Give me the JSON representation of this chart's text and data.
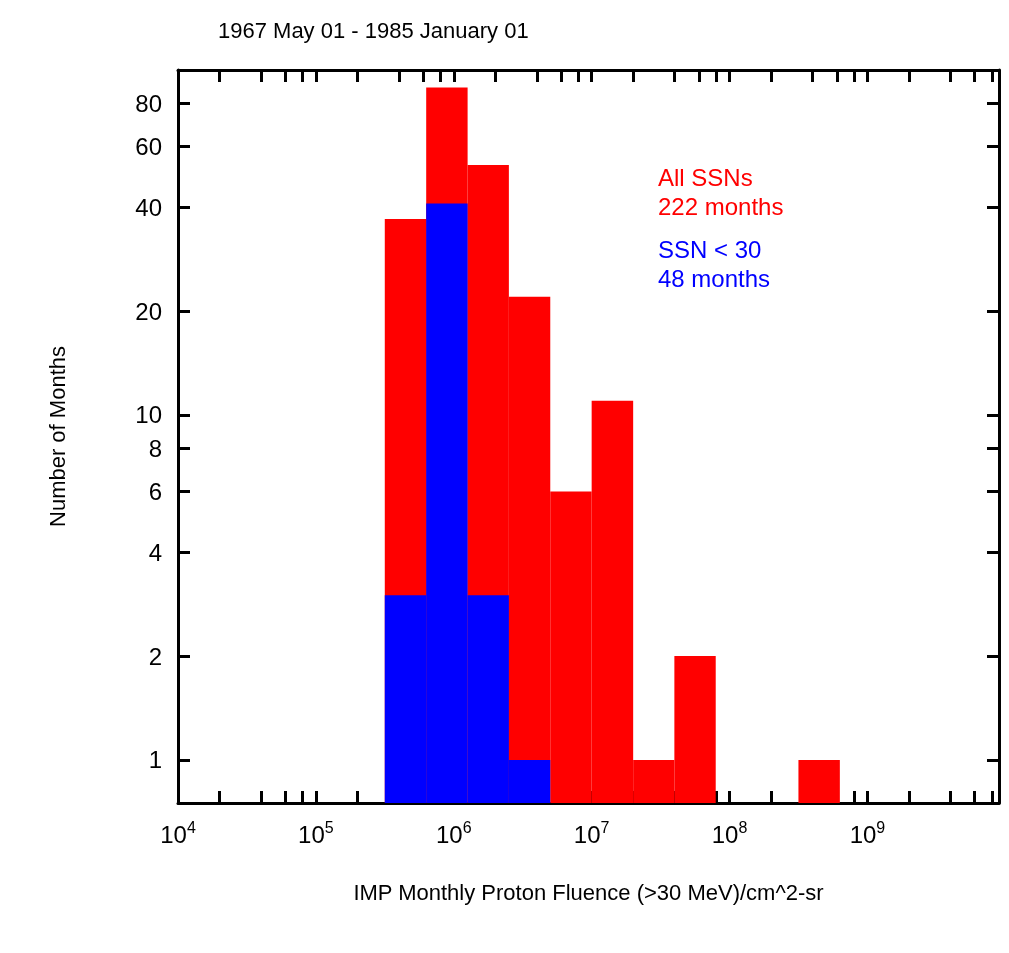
{
  "chart_data": {
    "type": "histogram",
    "title": "1967 May 01 - 1985 January 01",
    "xlabel": "IMP Monthly Proton Fluence (>30 MeV)/cm^2-sr",
    "ylabel": "Number of Months",
    "annotations": [
      "222 months",
      "48 months"
    ],
    "series": [
      {
        "name": "All SSNs",
        "color": "#ff0000",
        "values": [
          37,
          89,
          53,
          22,
          6,
          11,
          1,
          2,
          null,
          null,
          1
        ]
      },
      {
        "name": "SSN < 30",
        "color": "#0000ff",
        "values": [
          3,
          41,
          3,
          1,
          null,
          null,
          null,
          null,
          null,
          null,
          null
        ]
      }
    ],
    "bins": [
      316000,
      631000,
      1260000,
      2510000,
      5010000,
      10000000,
      20000000,
      39800000,
      79400000,
      158000000,
      316000000,
      631000000
    ],
    "log": "xy",
    "legend": "top right",
    "grid": false,
    "xlim": [
      10000,
      9000000000
    ],
    "xticks": [
      {
        "value": 10000,
        "label": "10$^{4}$"
      },
      {
        "value": 20000,
        "label": null
      },
      {
        "value": 40000,
        "label": null
      },
      {
        "value": 60000,
        "label": null
      },
      {
        "value": 80000,
        "label": null
      },
      {
        "value": 100000,
        "label": "10$^{5}$"
      },
      {
        "value": 200000,
        "label": null
      },
      {
        "value": 400000,
        "label": null
      },
      {
        "value": 600000,
        "label": null
      },
      {
        "value": 800000,
        "label": null
      },
      {
        "value": 1000000,
        "label": "10$^{6}$"
      },
      {
        "value": 2000000,
        "label": null
      },
      {
        "value": 4000000,
        "label": null
      },
      {
        "value": 6000000,
        "label": null
      },
      {
        "value": 8000000,
        "label": null
      },
      {
        "value": 10000000,
        "label": "10$^{7}$"
      },
      {
        "value": 20000000,
        "label": null
      },
      {
        "value": 40000000,
        "label": null
      },
      {
        "value": 60000000,
        "label": null
      },
      {
        "value": 80000000,
        "label": null
      },
      {
        "value": 100000000,
        "label": "10$^{8}$"
      },
      {
        "value": 200000000,
        "label": null
      },
      {
        "value": 400000000,
        "label": null
      },
      {
        "value": 600000000,
        "label": null
      },
      {
        "value": 800000000,
        "label": null
      },
      {
        "value": 1000000000,
        "label": "10$^{9}$"
      },
      {
        "value": 2000000000,
        "label": null
      },
      {
        "value": 4000000000,
        "label": null
      },
      {
        "value": 6000000000,
        "label": null
      },
      {
        "value": 8000000000,
        "label": null
      }
    ],
    "ylim": [
      0.75,
      100
    ],
    "yticks": [
      1,
      2,
      4,
      6,
      8,
      10,
      20,
      40,
      60,
      80
    ]
  }
}
